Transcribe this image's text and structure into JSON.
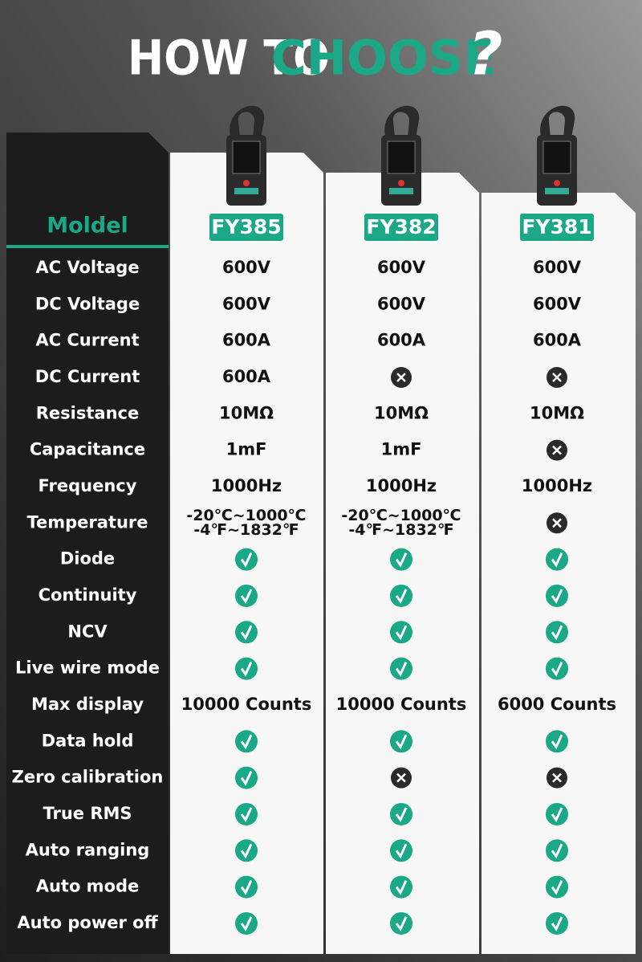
{
  "title": {
    "lead": "HOW TO",
    "highlight": "CHOOSE",
    "mark": "?"
  },
  "table": {
    "header": "Moldel",
    "models": [
      "FY385",
      "FY382",
      "FY381"
    ],
    "rows": [
      {
        "label": "AC Voltage",
        "cells": [
          "600V",
          "600V",
          "600V"
        ]
      },
      {
        "label": "DC Voltage",
        "cells": [
          "600V",
          "600V",
          "600V"
        ]
      },
      {
        "label": "AC Current",
        "cells": [
          "600A",
          "600A",
          "600A"
        ]
      },
      {
        "label": "DC Current",
        "cells": [
          "600A",
          false,
          false
        ]
      },
      {
        "label": "Resistance",
        "cells": [
          "10MΩ",
          "10MΩ",
          "10MΩ"
        ]
      },
      {
        "label": "Capacitance",
        "cells": [
          "1mF",
          "1mF",
          false
        ]
      },
      {
        "label": "Frequency",
        "cells": [
          "1000Hz",
          "1000Hz",
          "1000Hz"
        ]
      },
      {
        "label": "Temperature",
        "cells": [
          [
            "-20℃~1000℃",
            "-4℉~1832℉"
          ],
          [
            "-20℃~1000℃",
            "-4℉~1832℉"
          ],
          false
        ]
      },
      {
        "label": "Diode",
        "cells": [
          true,
          true,
          true
        ]
      },
      {
        "label": "Continuity",
        "cells": [
          true,
          true,
          true
        ]
      },
      {
        "label": "NCV",
        "cells": [
          true,
          true,
          true
        ]
      },
      {
        "label": "Live wire mode",
        "cells": [
          true,
          true,
          true
        ]
      },
      {
        "label": "Max display",
        "cells": [
          "10000 Counts",
          "10000 Counts",
          "6000 Counts"
        ]
      },
      {
        "label": "Data hold",
        "cells": [
          true,
          true,
          true
        ]
      },
      {
        "label": "Zero calibration",
        "cells": [
          true,
          false,
          false
        ]
      },
      {
        "label": "True RMS",
        "cells": [
          true,
          true,
          true
        ]
      },
      {
        "label": "Auto ranging",
        "cells": [
          true,
          true,
          true
        ]
      },
      {
        "label": "Auto mode",
        "cells": [
          true,
          true,
          true
        ]
      },
      {
        "label": "Auto power off",
        "cells": [
          true,
          true,
          true
        ]
      }
    ]
  }
}
